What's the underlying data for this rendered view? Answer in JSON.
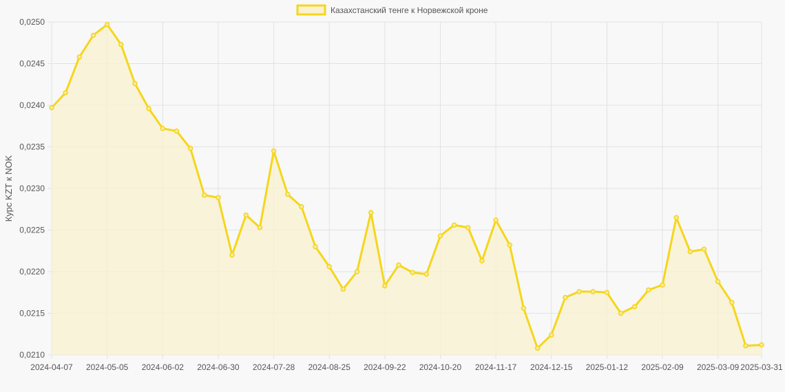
{
  "chart_data": {
    "type": "line",
    "title": "",
    "xlabel": "",
    "ylabel": "Курс KZT к NOK",
    "legend_position": "top-center",
    "grid": true,
    "colors": {
      "line": "#f5d61a",
      "fill": "#f9f1cf",
      "point_fill": "#f7eaa0",
      "grid": "#e2e2e2",
      "text": "#555555"
    },
    "ylim": [
      0.021,
      0.025
    ],
    "y_ticks": [
      "0,0250",
      "0,0245",
      "0,0240",
      "0,0235",
      "0,0230",
      "0,0225",
      "0,0220",
      "0,0215",
      "0,0210"
    ],
    "x_ticks": [
      "2024-04-07",
      "2024-05-05",
      "2024-06-02",
      "2024-06-30",
      "2024-07-28",
      "2024-08-25",
      "2024-09-22",
      "2024-10-20",
      "2024-11-17",
      "2024-12-15",
      "2025-01-12",
      "2025-02-09",
      "2025-03-09",
      "2025-03-31"
    ],
    "x": [
      "2024-04-07",
      "2024-04-14",
      "2024-04-21",
      "2024-04-28",
      "2024-05-05",
      "2024-05-12",
      "2024-05-19",
      "2024-05-26",
      "2024-06-02",
      "2024-06-09",
      "2024-06-16",
      "2024-06-23",
      "2024-06-30",
      "2024-07-07",
      "2024-07-14",
      "2024-07-21",
      "2024-07-28",
      "2024-08-04",
      "2024-08-11",
      "2024-08-18",
      "2024-08-25",
      "2024-09-01",
      "2024-09-08",
      "2024-09-15",
      "2024-09-22",
      "2024-09-29",
      "2024-10-06",
      "2024-10-13",
      "2024-10-20",
      "2024-10-27",
      "2024-11-03",
      "2024-11-10",
      "2024-11-17",
      "2024-11-24",
      "2024-12-01",
      "2024-12-08",
      "2024-12-15",
      "2024-12-22",
      "2024-12-29",
      "2025-01-05",
      "2025-01-12",
      "2025-01-19",
      "2025-01-26",
      "2025-02-02",
      "2025-02-09",
      "2025-02-16",
      "2025-02-23",
      "2025-03-02",
      "2025-03-09",
      "2025-03-16",
      "2025-03-23",
      "2025-03-31"
    ],
    "series": [
      {
        "name": "Казахстанский тенге к Норвежской кроне",
        "values": [
          0.02397,
          0.02415,
          0.02458,
          0.02484,
          0.02497,
          0.02473,
          0.02426,
          0.02396,
          0.02372,
          0.02369,
          0.02348,
          0.02292,
          0.02289,
          0.0222,
          0.02268,
          0.02253,
          0.02345,
          0.02293,
          0.02278,
          0.0223,
          0.02206,
          0.02179,
          0.022,
          0.02271,
          0.02183,
          0.02208,
          0.02199,
          0.02197,
          0.02243,
          0.02256,
          0.02253,
          0.02213,
          0.02262,
          0.02232,
          0.02156,
          0.02108,
          0.02124,
          0.02169,
          0.02176,
          0.02176,
          0.02175,
          0.0215,
          0.02158,
          0.02178,
          0.02184,
          0.02265,
          0.02224,
          0.02227,
          0.02188,
          0.02163,
          0.02111,
          0.02112
        ]
      }
    ]
  }
}
